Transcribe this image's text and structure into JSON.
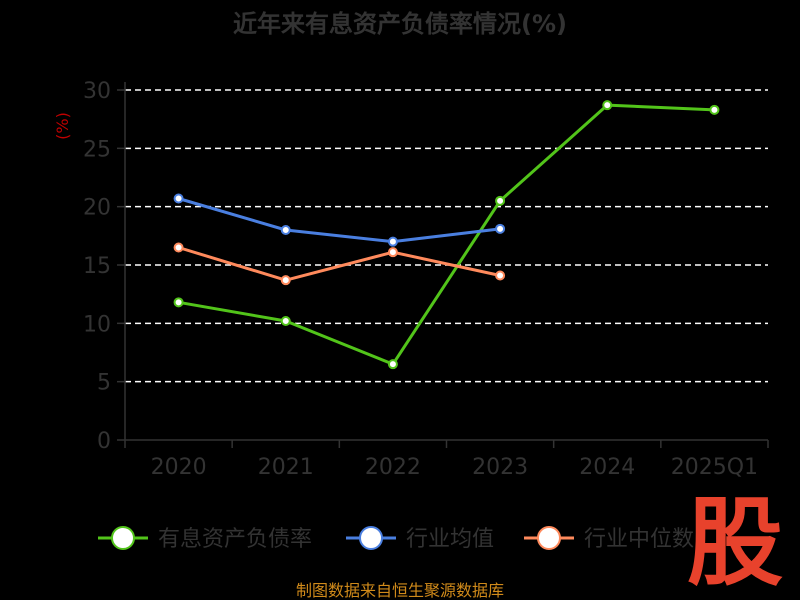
{
  "chart_data": {
    "type": "line",
    "title": "近年来有息资产负债率情况(%)",
    "ylabel": "(%)",
    "xlabel": "",
    "categories": [
      "2020",
      "2021",
      "2022",
      "2023",
      "2024",
      "2025Q1"
    ],
    "ylim": [
      0,
      30
    ],
    "yticks": [
      0,
      5,
      10,
      15,
      20,
      25,
      30
    ],
    "grid": true,
    "legend_position": "bottom",
    "series": [
      {
        "name": "有息资产负债率",
        "color": "#52c41a",
        "values": [
          11.8,
          10.2,
          6.5,
          20.5,
          28.7,
          28.3
        ]
      },
      {
        "name": "行业均值",
        "color": "#4a7fe0",
        "values": [
          20.7,
          18.0,
          17.0,
          18.1,
          null,
          null
        ]
      },
      {
        "name": "行业中位数",
        "color": "#ff8a5c",
        "values": [
          16.5,
          13.7,
          16.1,
          14.1,
          null,
          null
        ]
      }
    ]
  },
  "source": "制图数据来自恒生聚源数据库",
  "watermark": "股"
}
